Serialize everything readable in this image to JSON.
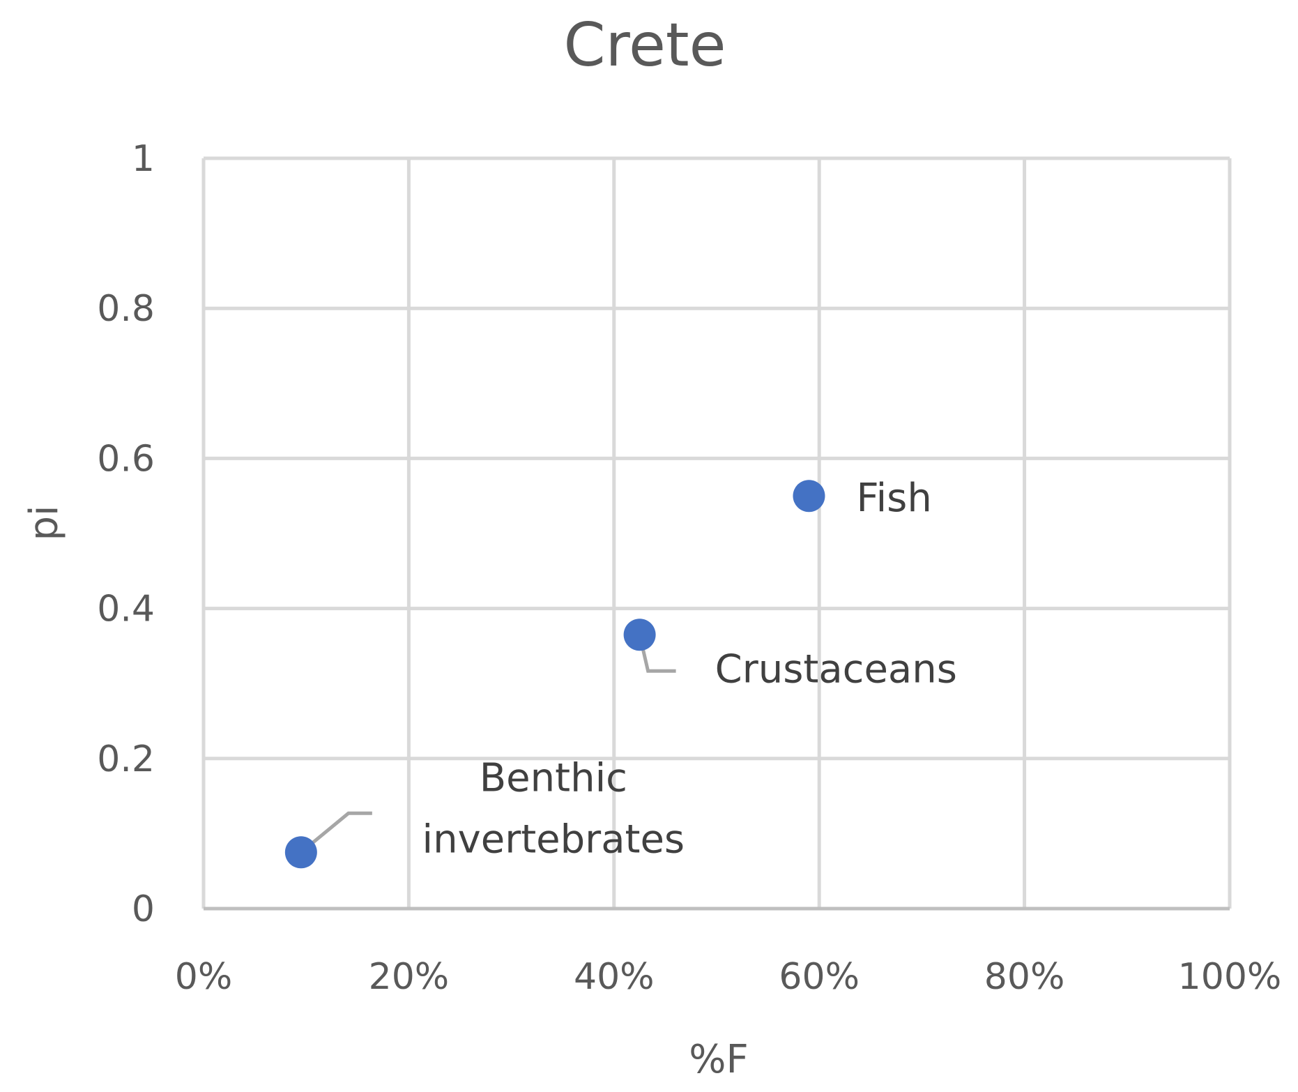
{
  "chart_data": {
    "type": "scatter",
    "title": "Crete",
    "xlabel": "%F",
    "ylabel": "pi",
    "xlim": [
      0,
      100
    ],
    "ylim": [
      0,
      1
    ],
    "x_ticks": [
      0,
      20,
      40,
      60,
      80,
      100
    ],
    "x_tick_labels": [
      "0%",
      "20%",
      "40%",
      "60%",
      "80%",
      "100%"
    ],
    "y_ticks": [
      0,
      0.2,
      0.4,
      0.6,
      0.8,
      1
    ],
    "y_tick_labels": [
      "0",
      "0.2",
      "0.4",
      "0.6",
      "0.8",
      "1"
    ],
    "grid": true,
    "legend": "none",
    "marker_color": "#4472c4",
    "points": [
      {
        "label": "Fish",
        "label_lines": [
          "Fish"
        ],
        "x": 59,
        "y": 0.55
      },
      {
        "label": "Crustaceans",
        "label_lines": [
          "Crustaceans"
        ],
        "x": 42.5,
        "y": 0.365
      },
      {
        "label": "Benthic invertebrates",
        "label_lines": [
          "Benthic",
          "invertebrates"
        ],
        "x": 9.5,
        "y": 0.075
      }
    ]
  }
}
